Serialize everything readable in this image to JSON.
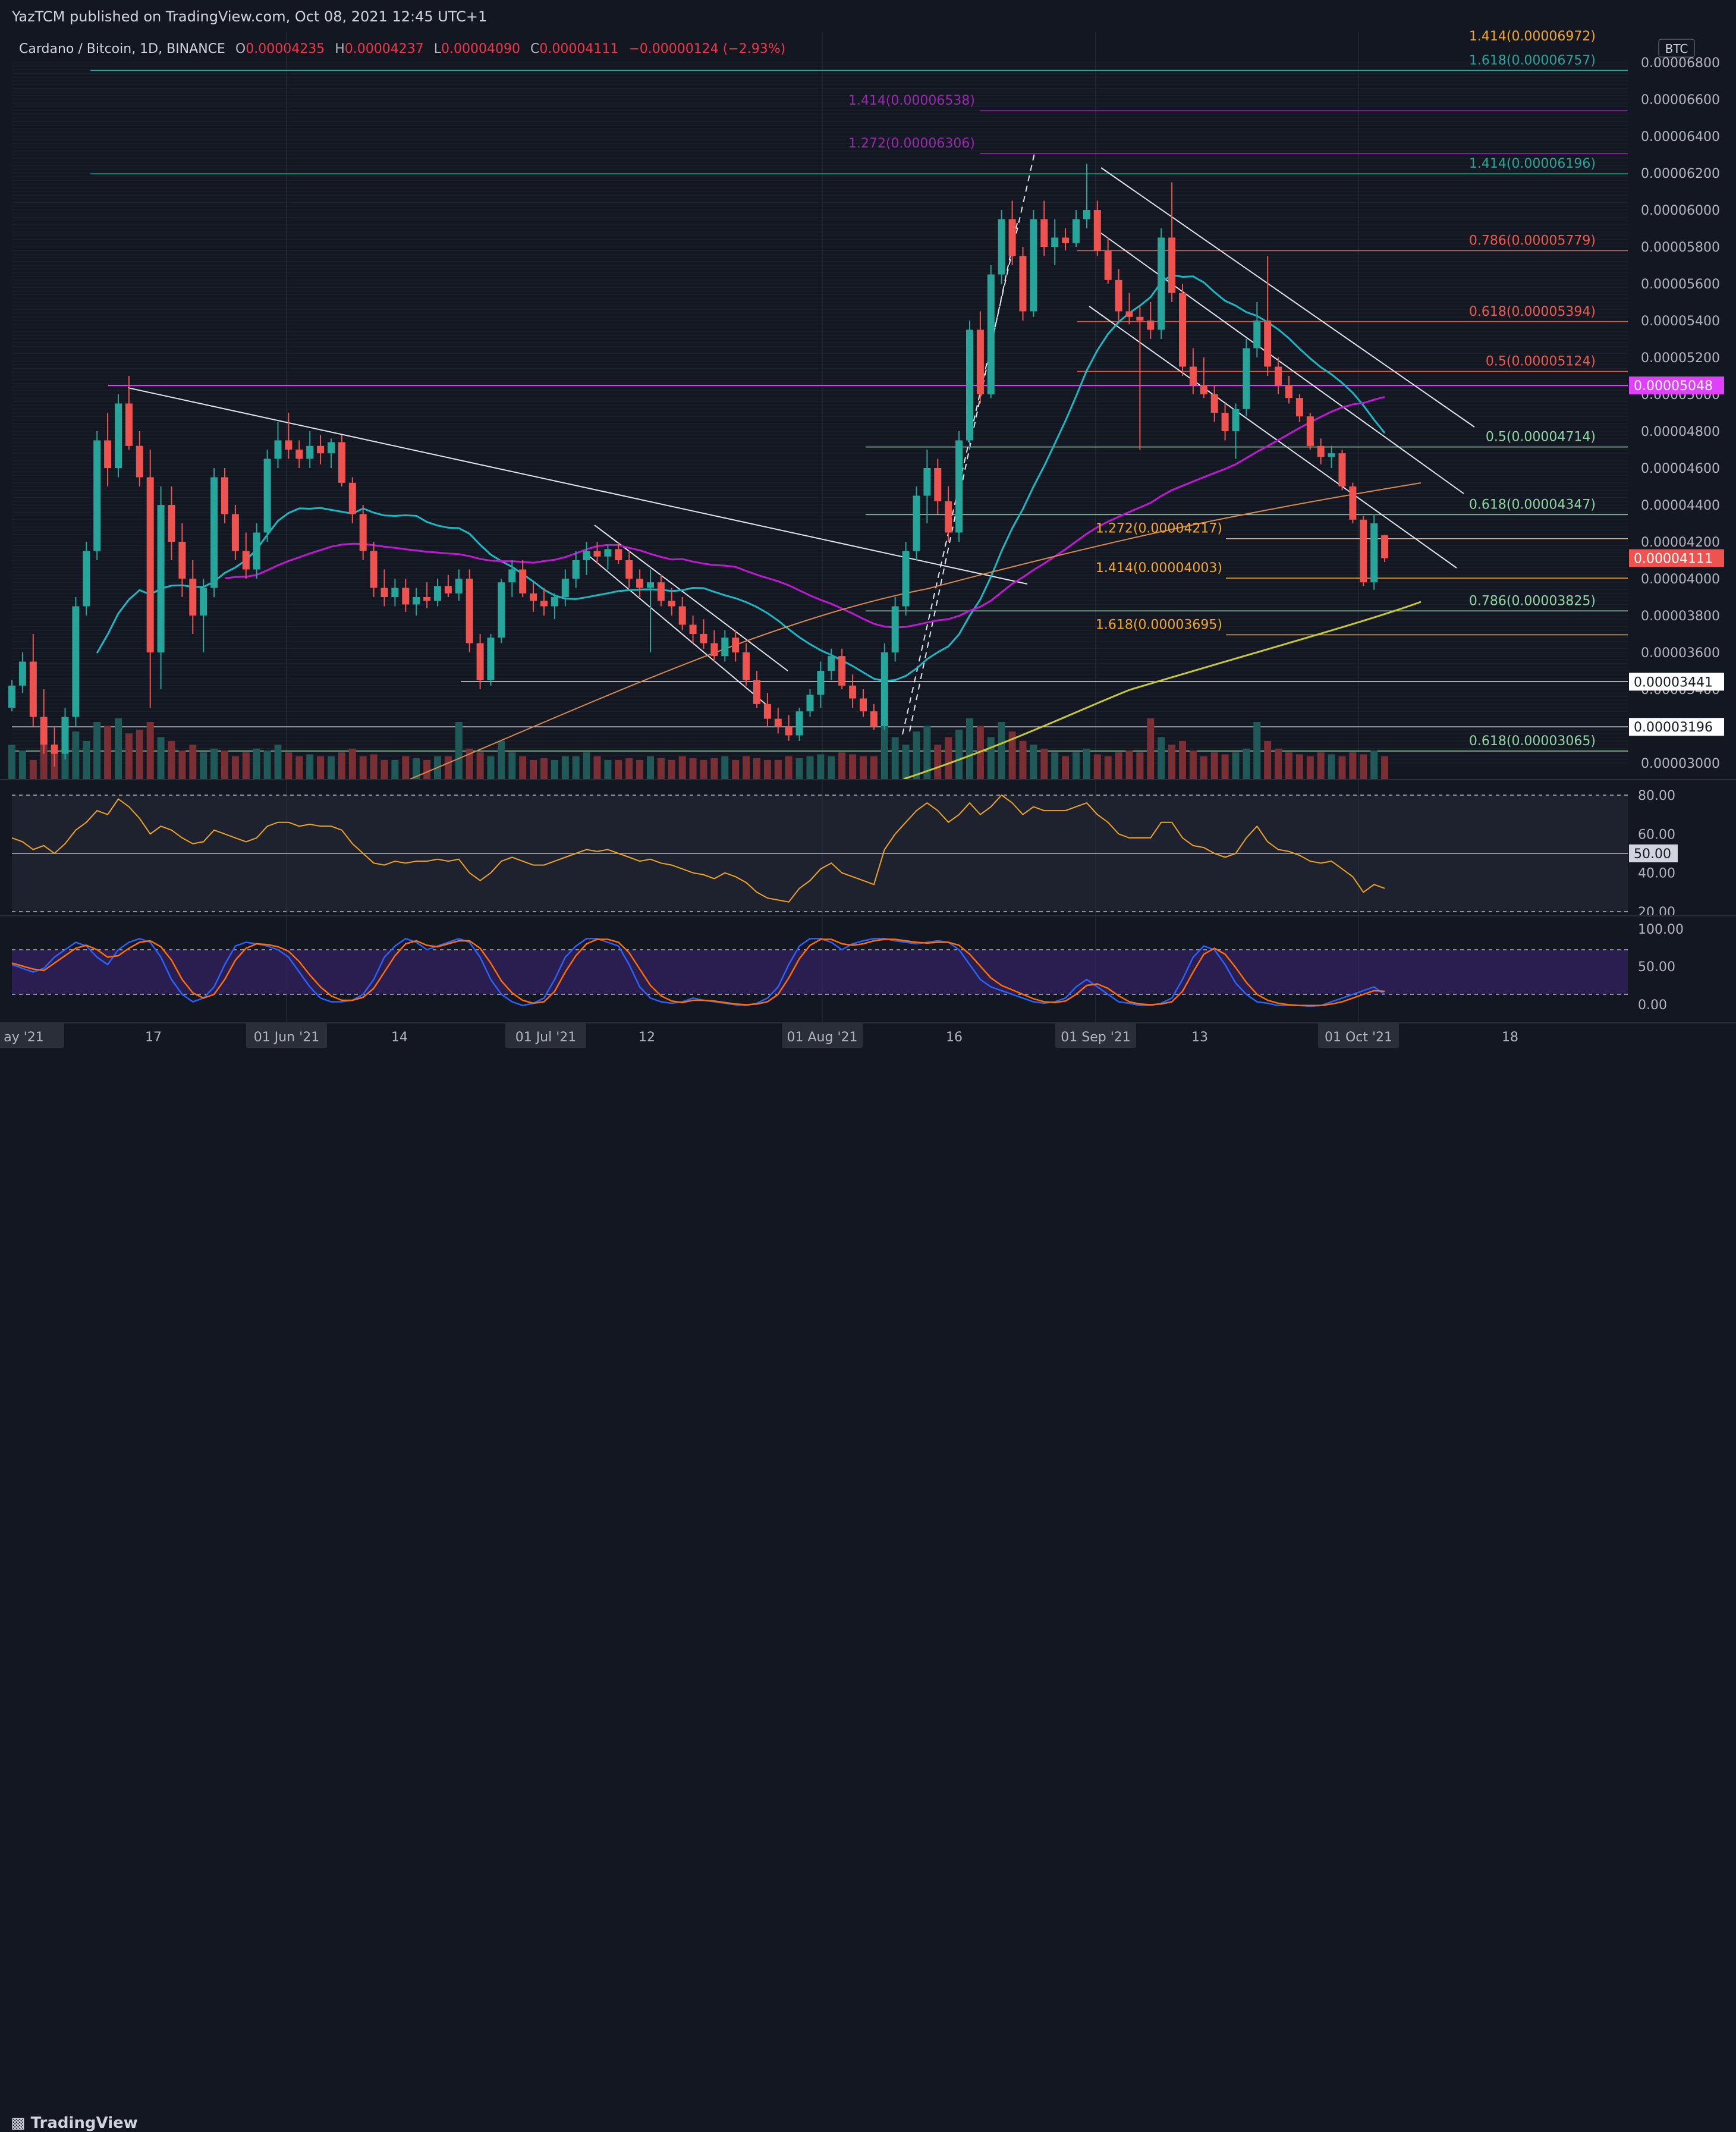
{
  "published": "YazTCM published on TradingView.com, Oct 08, 2021 12:45 UTC+1",
  "footer_brand": "TradingView",
  "legend": {
    "symbol": "Cardano / Bitcoin, 1D, BINANCE",
    "o_label": "O",
    "o_value": "0.00004235",
    "h_label": "H",
    "h_value": "0.00004237",
    "l_label": "L",
    "l_value": "0.00004090",
    "c_label": "C",
    "c_value": "0.00004111",
    "change": "−0.00000124 (−2.93%)"
  },
  "currency_badge": "BTC",
  "colors": {
    "background": "#131722",
    "up": "#26a69a",
    "down": "#ef5350",
    "sma20": "#17b9c4",
    "sma50": "#c218d6",
    "sma100": "#d88a4a",
    "sma200": "#c8c82e",
    "rsi": "#f0a31e",
    "stoch_k": "#2962ff",
    "stoch_d": "#ff6d00",
    "fib_green": "#8fd6a0",
    "fib_teal": "#26a69a",
    "fib_purple": "#9c27b0",
    "fib_red": "#f05a4a",
    "fib_orange": "#f5a623"
  },
  "price_ticks": [
    "0.00006800",
    "0.00006600",
    "0.00006400",
    "0.00006200",
    "0.00006000",
    "0.00005800",
    "0.00005600",
    "0.00005400",
    "0.00005200",
    "0.00005000",
    "0.00004800",
    "0.00004600",
    "0.00004400",
    "0.00004200",
    "0.00004000",
    "0.00003800",
    "0.00003600",
    "0.00003400",
    "0.00003200",
    "0.00003000"
  ],
  "price_badges": [
    {
      "text": "0.00005048",
      "price": 5.048e-05,
      "color": "#e040fb",
      "text_color": "#ffffff"
    },
    {
      "text": "0.00004111",
      "price": 4.111e-05,
      "color": "#ef5350",
      "text_color": "#ffffff"
    },
    {
      "text": "0.00003441",
      "price": 3.441e-05,
      "color": "#ffffff",
      "text_color": "#131722"
    },
    {
      "text": "0.00003196",
      "price": 3.196e-05,
      "color": "#ffffff",
      "text_color": "#131722"
    }
  ],
  "rsi_ticks": [
    "80.00",
    "60.00",
    "40.00",
    "20.00"
  ],
  "rsi_badge": "50.00",
  "stoch_ticks": [
    "100.00",
    "50.00",
    "0.00"
  ],
  "time_labels": [
    {
      "text": "ay '21",
      "boxed": true
    },
    {
      "text": "17",
      "boxed": false
    },
    {
      "text": "01 Jun '21",
      "boxed": true
    },
    {
      "text": "14",
      "boxed": false
    },
    {
      "text": "01 Jul '21",
      "boxed": true
    },
    {
      "text": "12",
      "boxed": false
    },
    {
      "text": "01 Aug '21",
      "boxed": true
    },
    {
      "text": "16",
      "boxed": false
    },
    {
      "text": "01 Sep '21",
      "boxed": true
    },
    {
      "text": "13",
      "boxed": false
    },
    {
      "text": "01 Oct '21",
      "boxed": true
    },
    {
      "text": "18",
      "boxed": false
    }
  ],
  "fib_labels": [
    {
      "text": "1.414(0.00006972)",
      "price": 6.972e-05,
      "color": "#f5a623"
    },
    {
      "text": "1.618(0.00006757)",
      "price": 6.757e-05,
      "color": "#26a69a"
    },
    {
      "text": "1.414(0.00006538)",
      "price": 6.538e-05,
      "color": "#9c27b0"
    },
    {
      "text": "1.272(0.00006306)",
      "price": 6.306e-05,
      "color": "#9c27b0"
    },
    {
      "text": "1.414(0.00006196)",
      "price": 6.196e-05,
      "color": "#26a69a"
    },
    {
      "text": "0.786(0.00005779)",
      "price": 5.779e-05,
      "color": "#f05a4a"
    },
    {
      "text": "0.618(0.00005394)",
      "price": 5.394e-05,
      "color": "#f05a4a"
    },
    {
      "text": "0.5(0.00005124)",
      "price": 5.124e-05,
      "color": "#f05a4a"
    },
    {
      "text": "0.5(0.00004714)",
      "price": 4.714e-05,
      "color": "#8fd6a0"
    },
    {
      "text": "0.618(0.00004347)",
      "price": 4.347e-05,
      "color": "#8fd6a0"
    },
    {
      "text": "1.272(0.00004217)",
      "price": 4.217e-05,
      "color": "#f5a623"
    },
    {
      "text": "1.414(0.00004003)",
      "price": 4.003e-05,
      "color": "#f5a623"
    },
    {
      "text": "0.786(0.00003825)",
      "price": 3.825e-05,
      "color": "#8fd6a0"
    },
    {
      "text": "1.618(0.00003695)",
      "price": 3.695e-05,
      "color": "#f5a623"
    },
    {
      "text": "0.618(0.00003065)",
      "price": 3.065e-05,
      "color": "#8fd6a0"
    }
  ],
  "chart_data": {
    "type": "candlestick",
    "title": "Cardano / Bitcoin, 1D, BINANCE",
    "ylabel": "BTC",
    "ylim": [
      2.93e-05,
      6.96e-05
    ],
    "x_start_date": "2021-05-10",
    "candles": [
      [
        3.3,
        3.45,
        3.28,
        3.42
      ],
      [
        3.42,
        3.6,
        3.38,
        3.55
      ],
      [
        3.55,
        3.7,
        3.2,
        3.25
      ],
      [
        3.25,
        3.4,
        3.05,
        3.1
      ],
      [
        3.1,
        3.2,
        2.98,
        3.05
      ],
      [
        3.05,
        3.3,
        3.02,
        3.25
      ],
      [
        3.25,
        3.9,
        3.2,
        3.85
      ],
      [
        3.85,
        4.2,
        3.8,
        4.15
      ],
      [
        4.15,
        4.8,
        4.1,
        4.75
      ],
      [
        4.75,
        4.9,
        4.5,
        4.6
      ],
      [
        4.6,
        5.0,
        4.55,
        4.95
      ],
      [
        4.95,
        5.1,
        4.7,
        4.72
      ],
      [
        4.72,
        4.8,
        4.5,
        4.55
      ],
      [
        4.55,
        4.7,
        3.3,
        3.6
      ],
      [
        3.6,
        4.5,
        3.4,
        4.4
      ],
      [
        4.4,
        4.5,
        4.1,
        4.2
      ],
      [
        4.2,
        4.3,
        3.9,
        4.0
      ],
      [
        4.0,
        4.1,
        3.7,
        3.8
      ],
      [
        3.8,
        4.0,
        3.6,
        3.95
      ],
      [
        3.95,
        4.6,
        3.9,
        4.55
      ],
      [
        4.55,
        4.6,
        4.3,
        4.35
      ],
      [
        4.35,
        4.4,
        4.1,
        4.15
      ],
      [
        4.15,
        4.25,
        4.0,
        4.05
      ],
      [
        4.05,
        4.3,
        4.0,
        4.25
      ],
      [
        4.25,
        4.7,
        4.2,
        4.65
      ],
      [
        4.65,
        4.85,
        4.6,
        4.75
      ],
      [
        4.75,
        4.9,
        4.65,
        4.7
      ],
      [
        4.7,
        4.75,
        4.6,
        4.65
      ],
      [
        4.65,
        4.8,
        4.6,
        4.72
      ],
      [
        4.72,
        4.78,
        4.62,
        4.68
      ],
      [
        4.68,
        4.76,
        4.6,
        4.74
      ],
      [
        4.74,
        4.78,
        4.5,
        4.52
      ],
      [
        4.52,
        4.55,
        4.3,
        4.35
      ],
      [
        4.35,
        4.4,
        4.1,
        4.15
      ],
      [
        4.15,
        4.2,
        3.9,
        3.95
      ],
      [
        3.95,
        4.05,
        3.85,
        3.9
      ],
      [
        3.9,
        4.0,
        3.85,
        3.95
      ],
      [
        3.95,
        4.0,
        3.82,
        3.86
      ],
      [
        3.86,
        3.95,
        3.8,
        3.9
      ],
      [
        3.9,
        3.98,
        3.84,
        3.88
      ],
      [
        3.88,
        4.0,
        3.85,
        3.96
      ],
      [
        3.96,
        4.02,
        3.9,
        3.92
      ],
      [
        3.92,
        4.05,
        3.88,
        4.0
      ],
      [
        4.0,
        4.05,
        3.6,
        3.65
      ],
      [
        3.65,
        3.7,
        3.4,
        3.45
      ],
      [
        3.45,
        3.7,
        3.42,
        3.68
      ],
      [
        3.68,
        4.0,
        3.65,
        3.98
      ],
      [
        3.98,
        4.1,
        3.9,
        4.05
      ],
      [
        4.05,
        4.1,
        3.9,
        3.92
      ],
      [
        3.92,
        3.98,
        3.82,
        3.88
      ],
      [
        3.88,
        3.95,
        3.8,
        3.85
      ],
      [
        3.85,
        3.92,
        3.78,
        3.9
      ],
      [
        3.9,
        4.05,
        3.85,
        4.0
      ],
      [
        4.0,
        4.15,
        3.95,
        4.1
      ],
      [
        4.1,
        4.2,
        4.02,
        4.15
      ],
      [
        4.15,
        4.2,
        4.08,
        4.12
      ],
      [
        4.12,
        4.18,
        4.05,
        4.16
      ],
      [
        4.16,
        4.2,
        4.08,
        4.1
      ],
      [
        4.1,
        4.15,
        3.95,
        4.0
      ],
      [
        4.0,
        4.05,
        3.9,
        3.95
      ],
      [
        3.95,
        4.05,
        3.6,
        3.98
      ],
      [
        3.98,
        4.02,
        3.85,
        3.88
      ],
      [
        3.88,
        3.95,
        3.8,
        3.85
      ],
      [
        3.85,
        3.9,
        3.72,
        3.75
      ],
      [
        3.75,
        3.8,
        3.65,
        3.7
      ],
      [
        3.7,
        3.78,
        3.62,
        3.65
      ],
      [
        3.65,
        3.72,
        3.55,
        3.58
      ],
      [
        3.58,
        3.72,
        3.55,
        3.68
      ],
      [
        3.68,
        3.72,
        3.55,
        3.6
      ],
      [
        3.6,
        3.65,
        3.42,
        3.45
      ],
      [
        3.45,
        3.5,
        3.3,
        3.32
      ],
      [
        3.32,
        3.38,
        3.2,
        3.24
      ],
      [
        3.24,
        3.3,
        3.16,
        3.2
      ],
      [
        3.2,
        3.26,
        3.12,
        3.15
      ],
      [
        3.15,
        3.3,
        3.12,
        3.28
      ],
      [
        3.28,
        3.4,
        3.25,
        3.37
      ],
      [
        3.37,
        3.55,
        3.3,
        3.5
      ],
      [
        3.5,
        3.62,
        3.45,
        3.58
      ],
      [
        3.58,
        3.62,
        3.4,
        3.42
      ],
      [
        3.42,
        3.48,
        3.3,
        3.35
      ],
      [
        3.35,
        3.4,
        3.25,
        3.28
      ],
      [
        3.28,
        3.32,
        3.18,
        3.2
      ],
      [
        3.2,
        3.65,
        3.18,
        3.6
      ],
      [
        3.6,
        3.9,
        3.55,
        3.85
      ],
      [
        3.85,
        4.2,
        3.8,
        4.15
      ],
      [
        4.15,
        4.5,
        4.1,
        4.45
      ],
      [
        4.45,
        4.7,
        4.3,
        4.6
      ],
      [
        4.6,
        4.65,
        4.35,
        4.42
      ],
      [
        4.42,
        4.5,
        4.2,
        4.25
      ],
      [
        4.25,
        4.8,
        4.2,
        4.75
      ],
      [
        4.75,
        5.4,
        4.7,
        5.35
      ],
      [
        5.35,
        5.45,
        4.95,
        5.0
      ],
      [
        5.0,
        5.7,
        4.98,
        5.65
      ],
      [
        5.65,
        6.0,
        5.6,
        5.95
      ],
      [
        5.95,
        6.05,
        5.7,
        5.75
      ],
      [
        5.75,
        5.8,
        5.4,
        5.45
      ],
      [
        5.45,
        6.0,
        5.42,
        5.95
      ],
      [
        5.95,
        6.05,
        5.75,
        5.8
      ],
      [
        5.8,
        5.95,
        5.7,
        5.85
      ],
      [
        5.85,
        5.9,
        5.78,
        5.82
      ],
      [
        5.82,
        6.0,
        5.8,
        5.95
      ],
      [
        5.95,
        6.25,
        5.9,
        6.0
      ],
      [
        6.0,
        6.05,
        5.75,
        5.78
      ],
      [
        5.78,
        5.85,
        5.6,
        5.62
      ],
      [
        5.62,
        5.68,
        5.4,
        5.45
      ],
      [
        5.45,
        5.55,
        5.38,
        5.42
      ],
      [
        5.42,
        5.48,
        4.7,
        5.4
      ],
      [
        5.4,
        5.5,
        5.3,
        5.35
      ],
      [
        5.35,
        5.9,
        5.3,
        5.85
      ],
      [
        5.85,
        6.15,
        5.5,
        5.55
      ],
      [
        5.55,
        5.6,
        5.1,
        5.15
      ],
      [
        5.15,
        5.25,
        5.0,
        5.05
      ],
      [
        5.05,
        5.2,
        4.98,
        5.0
      ],
      [
        5.0,
        5.05,
        4.85,
        4.9
      ],
      [
        4.9,
        4.95,
        4.75,
        4.8
      ],
      [
        4.8,
        4.95,
        4.65,
        4.92
      ],
      [
        4.92,
        5.3,
        4.88,
        5.25
      ],
      [
        5.25,
        5.5,
        5.2,
        5.4
      ],
      [
        5.4,
        5.75,
        5.1,
        5.15
      ],
      [
        5.15,
        5.2,
        5.0,
        5.05
      ],
      [
        5.05,
        5.1,
        4.95,
        4.98
      ],
      [
        4.98,
        5.0,
        4.85,
        4.88
      ],
      [
        4.88,
        4.9,
        4.7,
        4.72
      ],
      [
        4.72,
        4.76,
        4.62,
        4.66
      ],
      [
        4.66,
        4.72,
        4.6,
        4.68
      ],
      [
        4.68,
        4.7,
        4.48,
        4.5
      ],
      [
        4.5,
        4.52,
        4.3,
        4.32
      ],
      [
        4.32,
        4.34,
        3.96,
        3.98
      ],
      [
        3.98,
        4.35,
        3.94,
        4.3
      ],
      [
        4.235,
        4.237,
        4.09,
        4.111
      ]
    ],
    "volume": [
      0.18,
      0.15,
      0.1,
      0.22,
      0.14,
      0.18,
      0.25,
      0.2,
      0.3,
      0.28,
      0.32,
      0.24,
      0.26,
      0.3,
      0.22,
      0.2,
      0.15,
      0.18,
      0.14,
      0.16,
      0.15,
      0.12,
      0.14,
      0.16,
      0.15,
      0.18,
      0.14,
      0.12,
      0.13,
      0.12,
      0.12,
      0.14,
      0.16,
      0.12,
      0.13,
      0.1,
      0.1,
      0.12,
      0.11,
      0.1,
      0.12,
      0.12,
      0.3,
      0.16,
      0.14,
      0.12,
      0.2,
      0.14,
      0.12,
      0.1,
      0.11,
      0.1,
      0.12,
      0.12,
      0.14,
      0.12,
      0.1,
      0.1,
      0.11,
      0.1,
      0.12,
      0.11,
      0.1,
      0.12,
      0.11,
      0.1,
      0.11,
      0.12,
      0.1,
      0.12,
      0.11,
      0.1,
      0.1,
      0.12,
      0.11,
      0.12,
      0.13,
      0.12,
      0.14,
      0.13,
      0.12,
      0.12,
      0.3,
      0.22,
      0.18,
      0.25,
      0.28,
      0.18,
      0.22,
      0.26,
      0.32,
      0.28,
      0.22,
      0.3,
      0.25,
      0.2,
      0.18,
      0.16,
      0.14,
      0.12,
      0.14,
      0.16,
      0.13,
      0.12,
      0.14,
      0.15,
      0.14,
      0.32,
      0.22,
      0.18,
      0.2,
      0.15,
      0.12,
      0.14,
      0.13,
      0.14,
      0.16,
      0.3,
      0.2,
      0.16,
      0.14,
      0.13,
      0.12,
      0.14,
      0.13,
      0.12,
      0.14,
      0.13,
      0.15,
      0.12
    ],
    "rsi": [
      58,
      56,
      52,
      54,
      50,
      55,
      62,
      66,
      72,
      70,
      78,
      74,
      68,
      60,
      64,
      62,
      58,
      55,
      56,
      62,
      60,
      58,
      56,
      58,
      64,
      66,
      66,
      64,
      65,
      64,
      64,
      62,
      55,
      50,
      45,
      44,
      46,
      45,
      46,
      46,
      47,
      46,
      47,
      40,
      36,
      40,
      46,
      48,
      46,
      44,
      44,
      46,
      48,
      50,
      52,
      51,
      52,
      50,
      48,
      46,
      47,
      45,
      44,
      42,
      40,
      39,
      37,
      40,
      38,
      35,
      30,
      27,
      26,
      25,
      32,
      36,
      42,
      45,
      40,
      38,
      36,
      34,
      52,
      60,
      66,
      72,
      76,
      72,
      66,
      70,
      76,
      70,
      74,
      80,
      76,
      70,
      74,
      72,
      72,
      72,
      74,
      76,
      70,
      66,
      60,
      58,
      58,
      58,
      66,
      66,
      58,
      54,
      53,
      50,
      48,
      50,
      58,
      64,
      56,
      52,
      51,
      49,
      46,
      45,
      46,
      42,
      38,
      30,
      34,
      32
    ],
    "stoch_k": [
      60,
      55,
      50,
      55,
      70,
      80,
      90,
      85,
      70,
      60,
      80,
      90,
      95,
      90,
      70,
      40,
      20,
      10,
      15,
      30,
      60,
      85,
      90,
      88,
      85,
      80,
      70,
      50,
      30,
      15,
      10,
      10,
      12,
      20,
      40,
      70,
      85,
      95,
      90,
      80,
      85,
      90,
      95,
      90,
      70,
      40,
      20,
      10,
      5,
      8,
      15,
      40,
      70,
      85,
      95,
      95,
      90,
      85,
      60,
      30,
      15,
      10,
      8,
      10,
      15,
      12,
      10,
      8,
      6,
      5,
      8,
      15,
      30,
      60,
      85,
      95,
      95,
      90,
      80,
      88,
      92,
      95,
      95,
      92,
      90,
      88,
      90,
      92,
      90,
      80,
      60,
      40,
      30,
      25,
      20,
      15,
      10,
      8,
      10,
      15,
      30,
      40,
      30,
      20,
      10,
      8,
      5,
      5,
      8,
      15,
      40,
      70,
      85,
      80,
      60,
      35,
      20,
      10,
      8,
      5,
      5,
      5,
      4,
      5,
      10,
      15,
      20,
      25,
      30,
      20
    ],
    "stoch_d": [
      62,
      58,
      54,
      52,
      62,
      72,
      82,
      86,
      80,
      70,
      72,
      82,
      90,
      92,
      84,
      66,
      40,
      22,
      15,
      20,
      40,
      66,
      82,
      88,
      87,
      84,
      78,
      64,
      46,
      30,
      18,
      12,
      12,
      16,
      28,
      50,
      72,
      88,
      92,
      86,
      84,
      88,
      92,
      92,
      82,
      62,
      38,
      22,
      12,
      8,
      10,
      24,
      50,
      72,
      88,
      94,
      94,
      90,
      76,
      54,
      32,
      18,
      11,
      9,
      12,
      12,
      11,
      9,
      7,
      6,
      7,
      10,
      20,
      42,
      68,
      86,
      94,
      94,
      88,
      86,
      88,
      92,
      94,
      94,
      92,
      90,
      89,
      90,
      90,
      86,
      74,
      58,
      42,
      32,
      26,
      20,
      14,
      10,
      9,
      11,
      20,
      32,
      34,
      28,
      18,
      10,
      7,
      6,
      7,
      10,
      24,
      50,
      74,
      82,
      74,
      56,
      36,
      20,
      12,
      8,
      6,
      5,
      5,
      5,
      7,
      10,
      15,
      20,
      25,
      24
    ]
  }
}
